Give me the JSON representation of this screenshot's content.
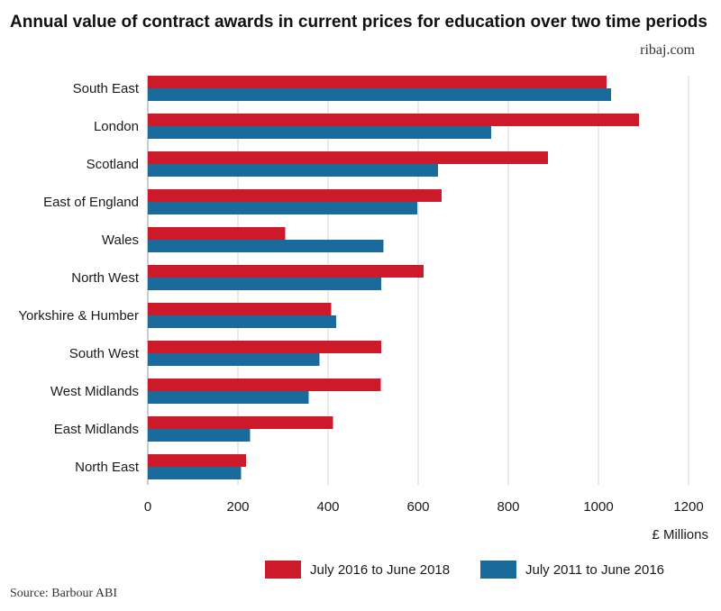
{
  "brand": "ribaj.com",
  "source": "Source: Barbour ABI",
  "colors": {
    "series_2016_2018": "#cc1a2b",
    "series_2011_2016": "#1a6b9c"
  },
  "chart_data": {
    "type": "bar",
    "orientation": "horizontal",
    "title": "Annual value of contract awards in current prices for education over two time periods",
    "xlabel": "£ Millions",
    "categories": [
      "South East",
      "London",
      "Scotland",
      "East of England",
      "Wales",
      "North West",
      "Yorkshire & Humber",
      "South West",
      "West Midlands",
      "East Midlands",
      "North East"
    ],
    "series": [
      {
        "name": "July 2016 to June 2018",
        "color": "#cc1a2b",
        "values": [
          1018,
          1090,
          888,
          652,
          305,
          612,
          407,
          518,
          517,
          411,
          218
        ]
      },
      {
        "name": "July 2011 to June 2016",
        "color": "#1a6b9c",
        "values": [
          1028,
          762,
          644,
          598,
          523,
          518,
          418,
          381,
          357,
          227,
          207
        ]
      }
    ],
    "xlim": [
      0,
      1200
    ],
    "xticks": [
      0,
      200,
      400,
      600,
      800,
      1000,
      1200
    ],
    "grid": "vertical",
    "legend": "bottom"
  }
}
